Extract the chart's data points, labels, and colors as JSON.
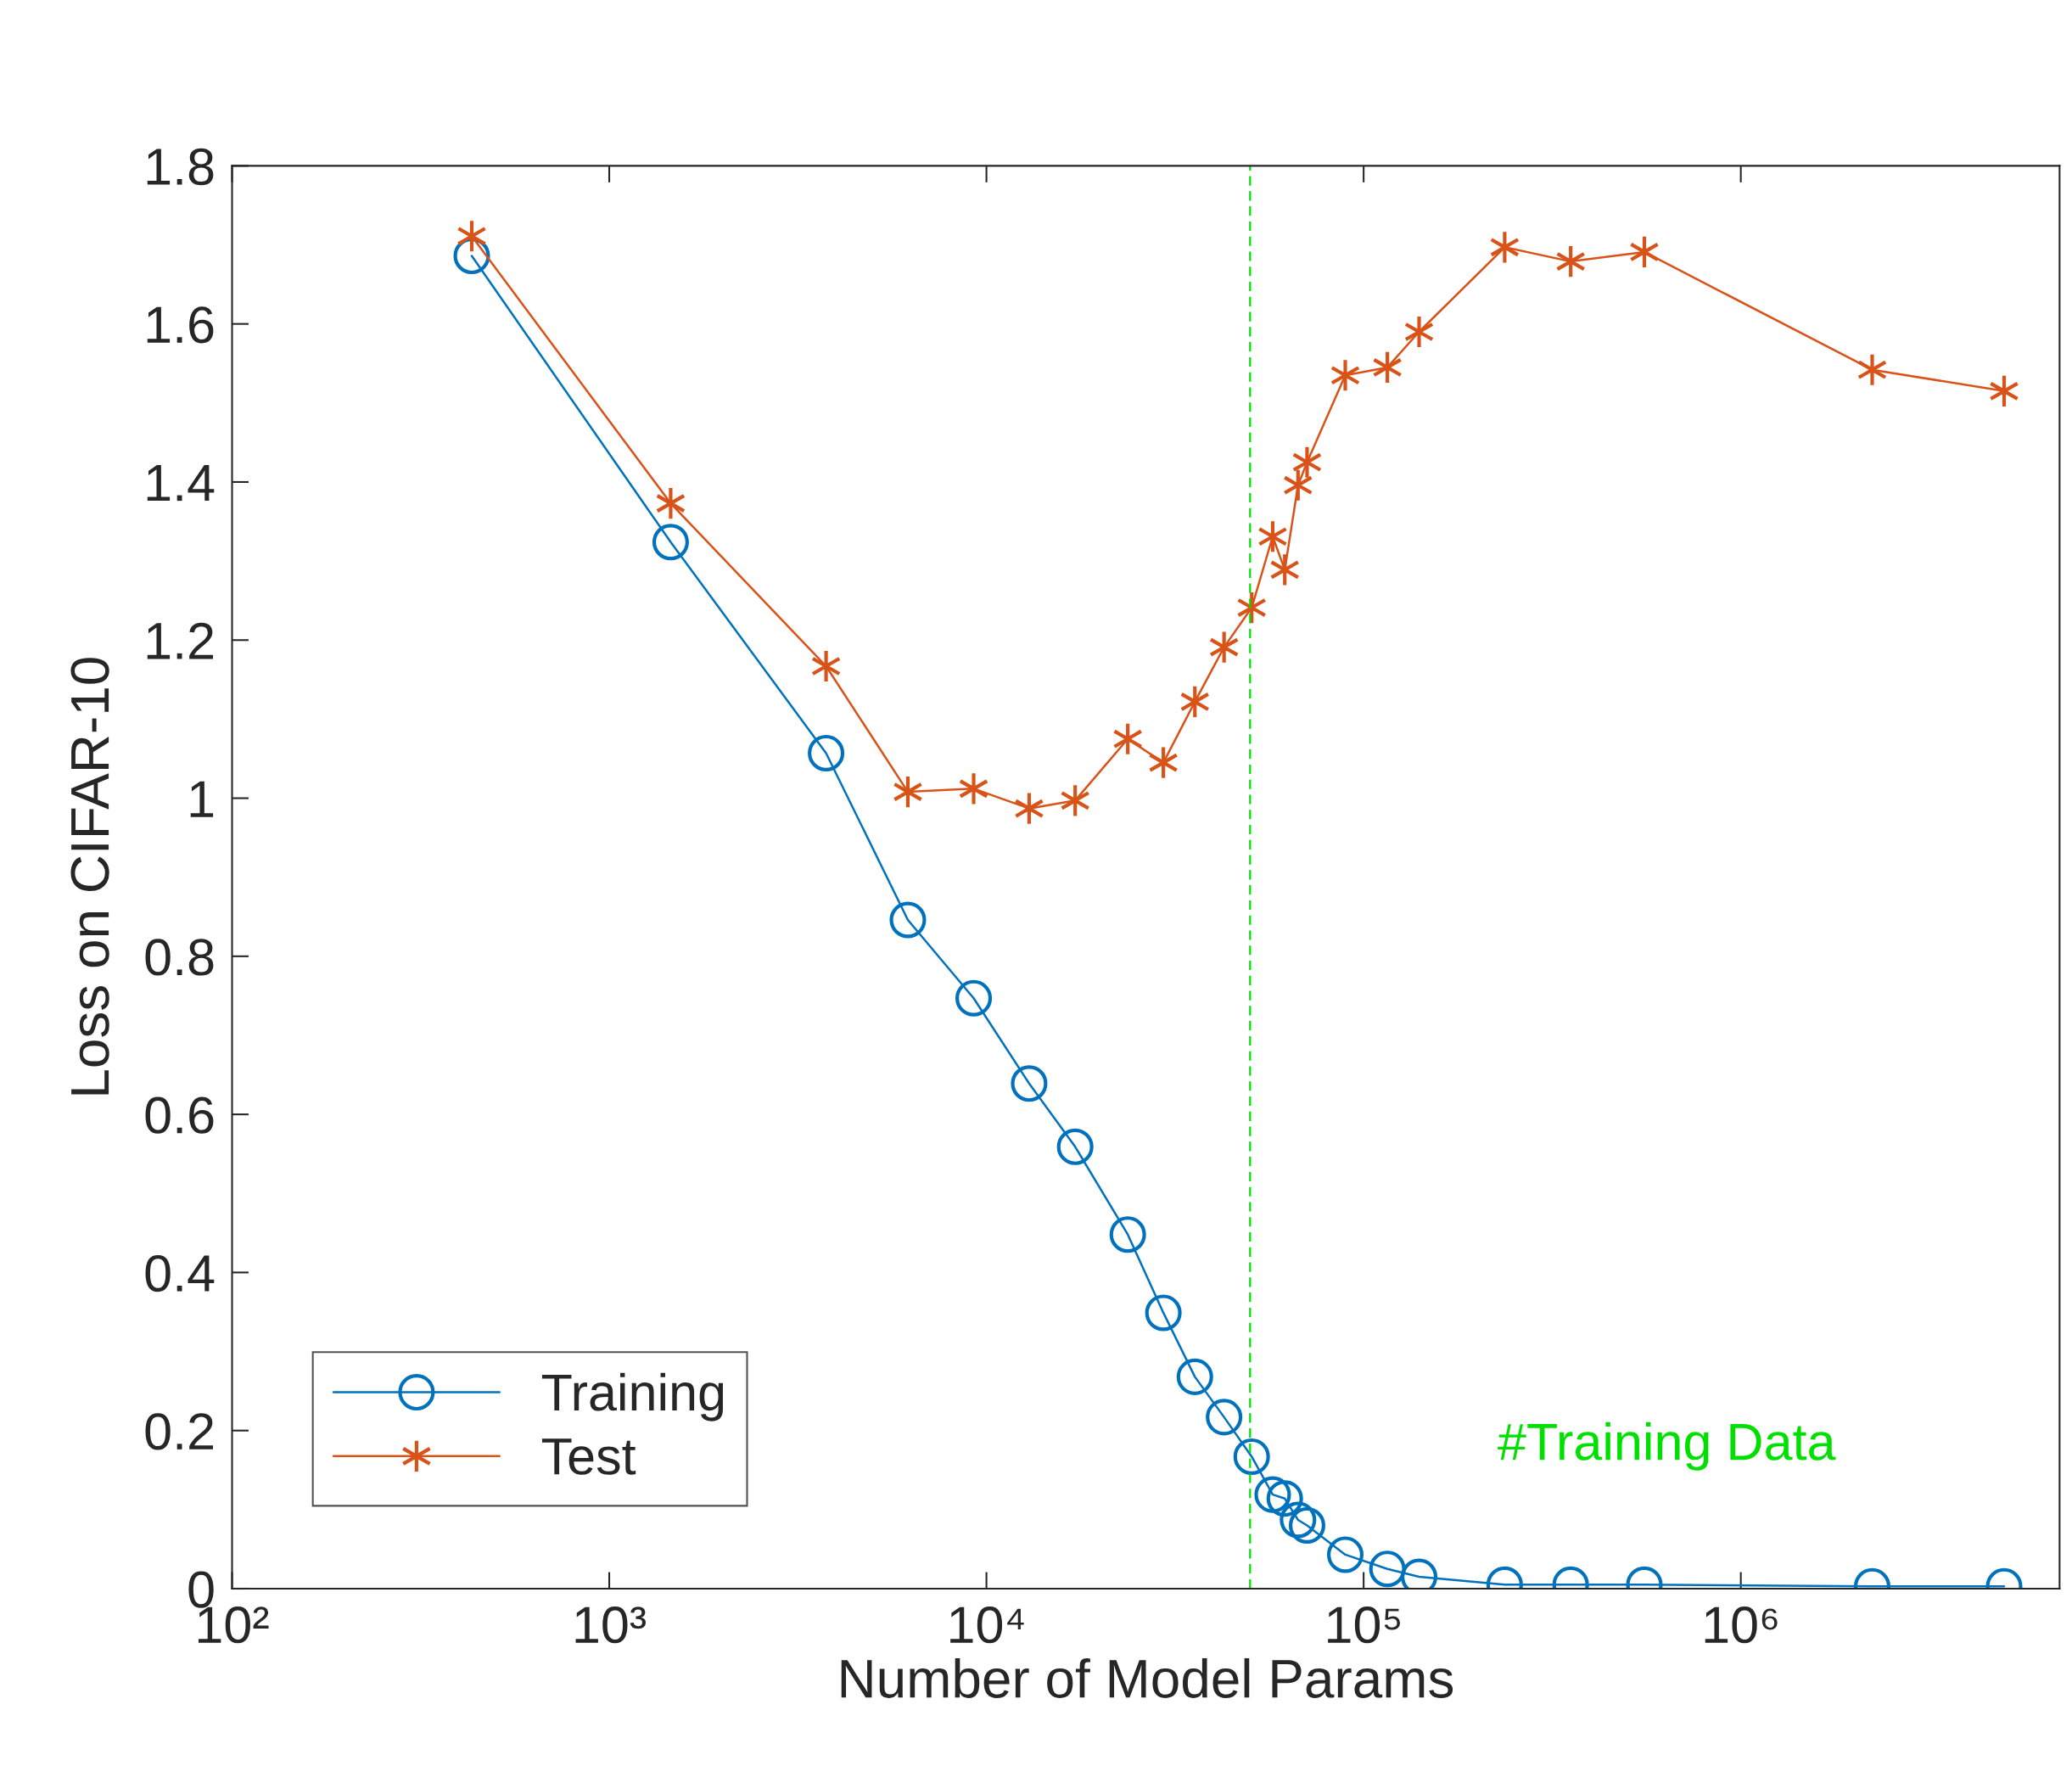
{
  "chart_data": {
    "type": "line",
    "xlabel": "Number of Model Params",
    "ylabel": "Loss on CIFAR-10",
    "x": [
      432,
      1455,
      3757,
      6190,
      9250,
      12980,
      17190,
      23700,
      29450,
      35700,
      42660,
      50500,
      57400,
      61800,
      67000,
      70800,
      89400,
      115600,
      140300,
      236600,
      354000,
      555000,
      2230000,
      4990000
    ],
    "series": [
      {
        "name": "Training",
        "color": "#0072bd",
        "marker": "circle",
        "values": [
          1.686,
          1.324,
          1.057,
          0.846,
          0.747,
          0.639,
          0.559,
          0.448,
          0.349,
          0.268,
          0.217,
          0.167,
          0.119,
          0.114,
          0.087,
          0.08,
          0.043,
          0.025,
          0.015,
          0.005,
          0.005,
          0.005,
          0.003,
          0.003
        ]
      },
      {
        "name": "Test",
        "color": "#d95319",
        "marker": "cross",
        "values": [
          1.711,
          1.373,
          1.167,
          1.008,
          1.012,
          0.987,
          0.997,
          1.075,
          1.045,
          1.122,
          1.191,
          1.241,
          1.331,
          1.289,
          1.396,
          1.425,
          1.535,
          1.545,
          1.59,
          1.697,
          1.679,
          1.691,
          1.542,
          1.515
        ]
      }
    ],
    "log": "x",
    "xlim": [
      100,
      7000000
    ],
    "xticks": [
      {
        "value": 100,
        "label": "10²"
      },
      {
        "value": 1000,
        "label": "10³"
      },
      {
        "value": 10000,
        "label": "10⁴"
      },
      {
        "value": 100000,
        "label": "10⁵"
      },
      {
        "value": 1000000,
        "label": "10⁶"
      }
    ],
    "ylim": [
      0,
      1.8
    ],
    "yticks": [
      0,
      0.2,
      0.4,
      0.6,
      0.8,
      1,
      1.2,
      1.4,
      1.6,
      1.8
    ],
    "ref_lines": [
      {
        "axis": "x",
        "value": 50000,
        "label": "#Training Data",
        "color": "#00e000",
        "line_style": "dashed"
      }
    ],
    "legend": "bottom left",
    "grid": false,
    "line_style": "solid"
  }
}
